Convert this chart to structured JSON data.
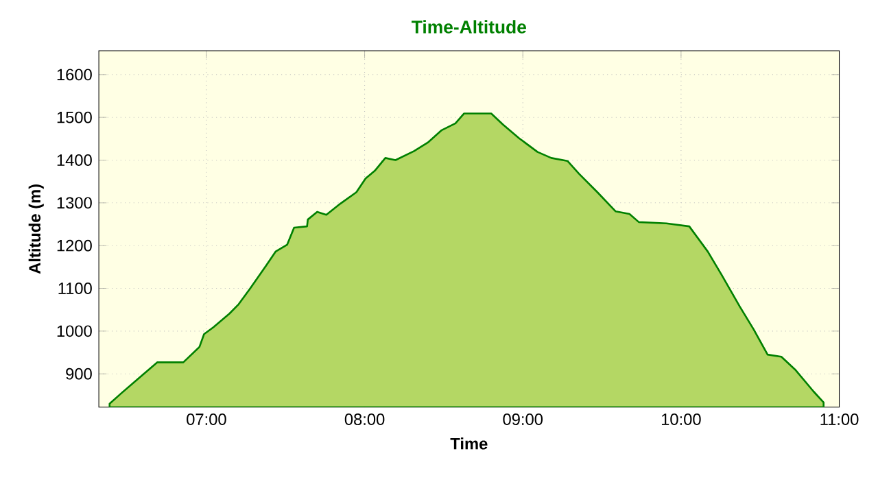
{
  "chart_data": {
    "type": "area",
    "title": "Time-Altitude",
    "xlabel": "Time",
    "ylabel": "Altitude (m)",
    "xlim": [
      6.32,
      11.0
    ],
    "ylim": [
      822,
      1656
    ],
    "xticks": [
      {
        "value": 7,
        "label": "07:00"
      },
      {
        "value": 8,
        "label": "08:00"
      },
      {
        "value": 9,
        "label": "09:00"
      },
      {
        "value": 10,
        "label": "10:00"
      },
      {
        "value": 11,
        "label": "11:00"
      }
    ],
    "yticks": [
      900,
      1000,
      1100,
      1200,
      1300,
      1400,
      1500,
      1600
    ],
    "grid": true,
    "series": [
      {
        "color": "#008000",
        "x": [
          6.388,
          6.46,
          6.56,
          6.69,
          6.854,
          6.956,
          6.985,
          7.044,
          7.146,
          7.204,
          7.277,
          7.379,
          7.437,
          7.51,
          7.554,
          7.636,
          7.641,
          7.7,
          7.758,
          7.846,
          7.948,
          8.006,
          8.064,
          8.131,
          8.195,
          8.312,
          8.399,
          8.487,
          8.574,
          8.628,
          8.8,
          8.875,
          8.977,
          9.093,
          9.18,
          9.282,
          9.355,
          9.471,
          9.587,
          9.674,
          9.733,
          9.907,
          10.052,
          10.169,
          10.256,
          10.372,
          10.459,
          10.547,
          10.634,
          10.721,
          10.837,
          10.901
        ],
        "values": [
          830,
          854,
          886,
          927,
          927,
          963,
          993,
          1009,
          1041,
          1063,
          1100,
          1154,
          1186,
          1202,
          1242,
          1245,
          1261,
          1279,
          1272,
          1298,
          1325,
          1357,
          1375,
          1405,
          1400,
          1421,
          1441,
          1470,
          1486,
          1509,
          1509,
          1483,
          1451,
          1419,
          1405,
          1398,
          1368,
          1325,
          1280,
          1274,
          1255,
          1252,
          1245,
          1186,
          1132,
          1057,
          1004,
          945,
          940,
          910,
          859,
          833
        ]
      }
    ]
  }
}
